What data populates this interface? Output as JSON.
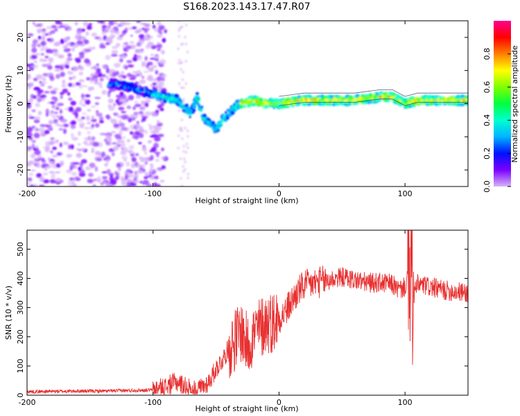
{
  "title": "S168.2023.143.17.47.R07",
  "chart_data": [
    {
      "type": "heatmap",
      "xlabel": "Height of straight line (km)",
      "ylabel": "Frequency (Hz)",
      "xlim": [
        -200,
        150
      ],
      "ylim": [
        -25,
        25
      ],
      "xticks": [
        -200,
        -100,
        0,
        100
      ],
      "yticks": [
        -20,
        -10,
        0,
        10,
        20
      ],
      "grid": false,
      "colorbar": {
        "label": "Normalized spectral amplitude",
        "range": [
          0,
          1
        ],
        "ticks": [
          0.0,
          0.2,
          0.4,
          0.6,
          0.8
        ],
        "colormap": [
          "#d8b4f8",
          "#7a00ff",
          "#0010ff",
          "#00b4ff",
          "#00ffd0",
          "#00ff40",
          "#80ff00",
          "#ffff00",
          "#ff8000",
          "#ff0000",
          "#ff0090"
        ]
      },
      "ridge": {
        "x": [
          -130,
          -120,
          -110,
          -100,
          -90,
          -80,
          -75,
          -70,
          -65,
          -60,
          -55,
          -50,
          -45,
          -40,
          -35,
          -30,
          -20,
          -10,
          0,
          20,
          40,
          60,
          80,
          90,
          95,
          100,
          110,
          120,
          130,
          150
        ],
        "y": [
          6,
          5,
          4,
          3,
          2,
          1,
          -1,
          -3,
          2,
          -4,
          -6,
          -8,
          -5,
          -3,
          -1,
          0,
          1,
          0,
          0,
          1,
          1,
          1,
          2,
          2,
          1,
          0,
          1,
          1,
          1,
          1
        ]
      }
    },
    {
      "type": "line",
      "xlabel": "Height of straight line (km)",
      "ylabel": "SNR (10 * v/v)",
      "xlim": [
        -200,
        150
      ],
      "ylim": [
        0,
        565
      ],
      "xticks": [
        -200,
        -100,
        0,
        100
      ],
      "yticks": [
        0,
        100,
        200,
        300,
        400,
        500
      ],
      "grid": false,
      "series": [
        {
          "color": "#e83030",
          "x": [
            -200,
            -180,
            -160,
            -140,
            -120,
            -100,
            -90,
            -85,
            -80,
            -75,
            -70,
            -65,
            -60,
            -55,
            -50,
            -45,
            -40,
            -35,
            -30,
            -25,
            -20,
            -15,
            -10,
            -5,
            0,
            5,
            10,
            15,
            20,
            30,
            40,
            50,
            60,
            70,
            80,
            90,
            95,
            100,
            103,
            104,
            105,
            106,
            110,
            120,
            130,
            140,
            150
          ],
          "y": [
            12,
            13,
            14,
            14,
            16,
            18,
            28,
            40,
            45,
            30,
            22,
            18,
            30,
            50,
            90,
            120,
            160,
            190,
            220,
            170,
            210,
            230,
            250,
            250,
            265,
            285,
            320,
            355,
            375,
            385,
            395,
            405,
            395,
            385,
            385,
            380,
            360,
            370,
            420,
            270,
            560,
            330,
            380,
            370,
            360,
            355,
            350
          ]
        }
      ]
    }
  ]
}
